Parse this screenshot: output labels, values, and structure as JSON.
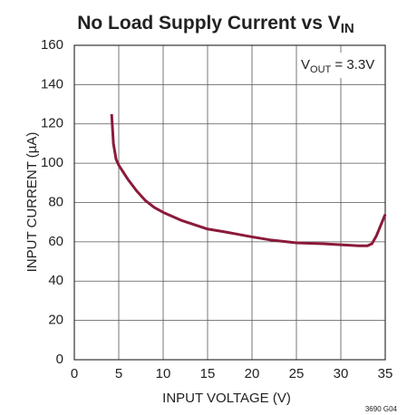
{
  "chart_data": {
    "type": "line",
    "title": "No Load Supply Current vs V",
    "title_subscript": "IN",
    "annotation": "V",
    "annotation_subscript": "OUT",
    "annotation_rest": " = 3.3V",
    "xlabel": "INPUT VOLTAGE (V)",
    "ylabel": "INPUT CURRENT (µA)",
    "figure_code": "3690 G04",
    "x": [
      4.2,
      4.4,
      4.7,
      5,
      6,
      7,
      8,
      9,
      10,
      12,
      14,
      15,
      17,
      20,
      22,
      25,
      28,
      30,
      32,
      33,
      33.5,
      34,
      35
    ],
    "series": [
      {
        "name": "VOUT = 3.3V",
        "color": "#8b1a3a",
        "values": [
          125,
          110,
          102,
          99,
          92,
          86,
          81,
          77.5,
          75,
          71,
          68,
          66.5,
          65,
          62.5,
          61,
          59.5,
          59,
          58.5,
          58,
          58,
          59,
          63,
          74
        ]
      }
    ],
    "xlim": [
      0,
      35
    ],
    "xticks": [
      0,
      5,
      10,
      15,
      20,
      25,
      30,
      35
    ],
    "ylim": [
      0,
      160
    ],
    "yticks": [
      0,
      20,
      40,
      60,
      80,
      100,
      120,
      140,
      160
    ],
    "grid": true
  }
}
